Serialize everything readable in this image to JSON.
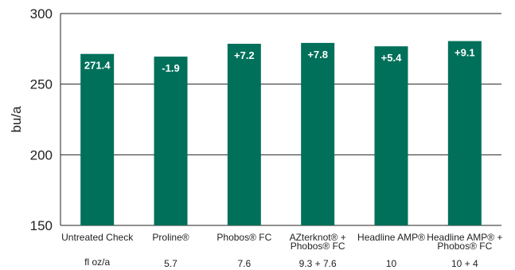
{
  "chart_data": {
    "type": "bar",
    "ylabel": "bu/a",
    "ylim": [
      150,
      300
    ],
    "yticks": [
      "150",
      "200",
      "250",
      "300"
    ],
    "grid": true,
    "bar_color": "#00705A",
    "categories": [
      [
        "Untreated Check"
      ],
      [
        "Proline®"
      ],
      [
        "Phobos® FC"
      ],
      [
        "AZterknot® +",
        "Phobos® FC"
      ],
      [
        "Headline AMP®"
      ],
      [
        "Headline AMP® +",
        "Phobos® FC"
      ]
    ],
    "values": [
      271.4,
      269.5,
      278.6,
      279.2,
      276.8,
      280.5
    ],
    "data_labels": [
      "271.4",
      "-1.9",
      "+7.2",
      "+7.8",
      "+5.4",
      "+9.1"
    ],
    "rate_header": "fl oz/a",
    "rates": [
      "",
      "5.7",
      "7.6",
      "9.3 + 7.6",
      "10",
      "10 + 4"
    ]
  }
}
